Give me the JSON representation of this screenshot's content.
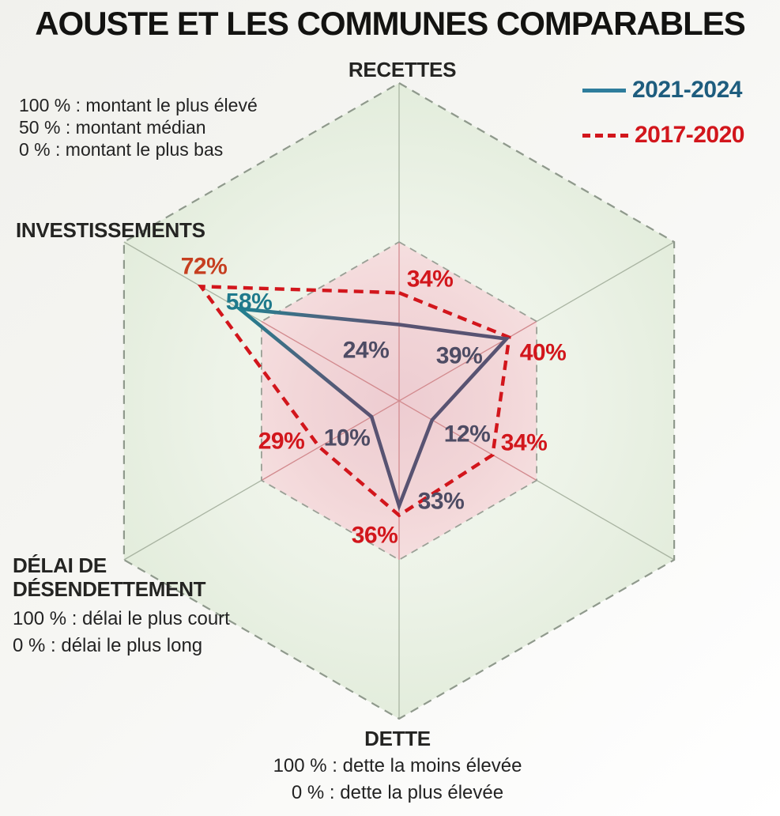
{
  "title": "AOUSTE ET LES COMMUNES COMPARABLES",
  "notes": {
    "montant": [
      "100 % : montant le plus élevé",
      "50 % : montant médian",
      "0 % : montant le plus bas"
    ],
    "delai": [
      "100 % : délai le plus court",
      "0 % : délai le plus long"
    ],
    "dette": [
      "100 % : dette la moins élevée",
      "0 % : dette la plus élevée"
    ]
  },
  "chart_data": {
    "type": "radar",
    "shape": "hexagon",
    "scale": {
      "min": 0,
      "max": 100,
      "inner_ring_pct": 50,
      "unit": "%"
    },
    "grid": {
      "outer_fill": "#eaf1e4",
      "inner_fill": "#f2d6d8",
      "outer_border": "#8f998c",
      "inner_border": "#9aa096",
      "spoke_outer": "#a9b4a2",
      "spoke_inner": "#d28a8e"
    },
    "axes": [
      {
        "label": "RECETTES",
        "position": "top"
      },
      {
        "label": "",
        "position": "upper-right"
      },
      {
        "label": "",
        "position": "lower-right"
      },
      {
        "label": "DETTE",
        "position": "bottom"
      },
      {
        "label": "DÉLAI DE DÉSENDETTEMENT",
        "label_lines": [
          "DÉLAI DE",
          "DÉSENDETTEMENT"
        ],
        "position": "lower-left"
      },
      {
        "label": "INVESTISSEMENTS",
        "position": "upper-left"
      }
    ],
    "series": [
      {
        "name": "2021-2024",
        "style": "solid",
        "color": "#2e7d9c",
        "text_color": "#1e5d7e",
        "gradient": [
          "#1e8291",
          "#4b6680",
          "#585372"
        ],
        "values": [
          24,
          39,
          12,
          33,
          10,
          58
        ],
        "label_colors": [
          "#4e4c64",
          "#4e4c64",
          "#4e4c64",
          "#4e4c64",
          "#4e4c64",
          "#1f7a8c"
        ]
      },
      {
        "name": "2017-2020",
        "style": "dashed",
        "color": "#d2161c",
        "text_color": "#d2161c",
        "values": [
          34,
          40,
          34,
          36,
          29,
          72
        ],
        "label_colors": [
          "#d2161c",
          "#d2161c",
          "#d2161c",
          "#d2161c",
          "#d2161c",
          "#c63f20"
        ]
      }
    ]
  }
}
